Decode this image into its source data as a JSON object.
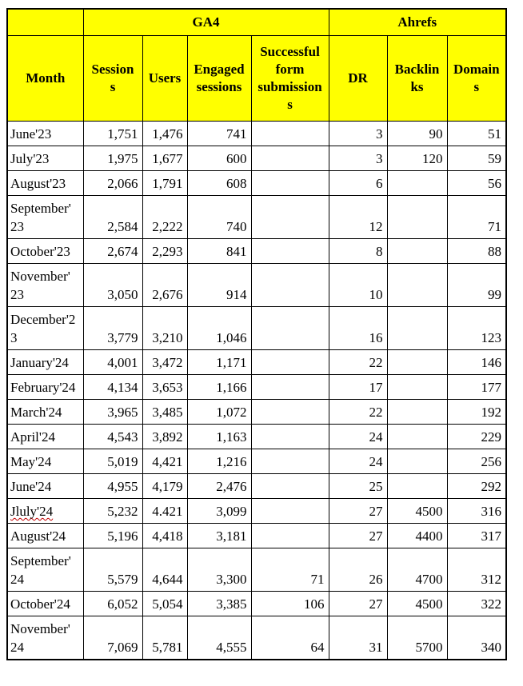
{
  "table": {
    "group_header": {
      "corner": "",
      "ga4": "GA4",
      "ahrefs": "Ahrefs"
    },
    "columns": [
      "Month",
      "Session\ns",
      "Users",
      "Engaged\nsessions",
      "Successful\nform\nsubmission\ns",
      "DR",
      "Backlin\nks",
      "Domain\ns"
    ],
    "rows": [
      {
        "month": "June'23",
        "sessions": "1,751",
        "users": "1,476",
        "engaged": "741",
        "forms": "",
        "dr": "3",
        "backlinks": "90",
        "domains": "51"
      },
      {
        "month": "July'23",
        "sessions": "1,975",
        "users": "1,677",
        "engaged": "600",
        "forms": "",
        "dr": "3",
        "backlinks": "120",
        "domains": "59"
      },
      {
        "month": "August'23",
        "sessions": "2,066",
        "users": "1,791",
        "engaged": "608",
        "forms": "",
        "dr": "6",
        "backlinks": "",
        "domains": "56"
      },
      {
        "month": "September'\n23",
        "sessions": "2,584",
        "users": "2,222",
        "engaged": "740",
        "forms": "",
        "dr": "12",
        "backlinks": "",
        "domains": "71"
      },
      {
        "month": "October'23",
        "sessions": "2,674",
        "users": "2,293",
        "engaged": "841",
        "forms": "",
        "dr": "8",
        "backlinks": "",
        "domains": "88"
      },
      {
        "month": "November'\n23",
        "sessions": "3,050",
        "users": "2,676",
        "engaged": "914",
        "forms": "",
        "dr": "10",
        "backlinks": "",
        "domains": "99"
      },
      {
        "month": "December'2\n3",
        "sessions": "3,779",
        "users": "3,210",
        "engaged": "1,046",
        "forms": "",
        "dr": "16",
        "backlinks": "",
        "domains": "123"
      },
      {
        "month": "January'24",
        "sessions": "4,001",
        "users": "3,472",
        "engaged": "1,171",
        "forms": "",
        "dr": "22",
        "backlinks": "",
        "domains": "146"
      },
      {
        "month": "February'24",
        "sessions": "4,134",
        "users": "3,653",
        "engaged": "1,166",
        "forms": "",
        "dr": "17",
        "backlinks": "",
        "domains": "177"
      },
      {
        "month": "March'24",
        "sessions": "3,965",
        "users": "3,485",
        "engaged": "1,072",
        "forms": "",
        "dr": "22",
        "backlinks": "",
        "domains": "192"
      },
      {
        "month": "April'24",
        "sessions": "4,543",
        "users": "3,892",
        "engaged": "1,163",
        "forms": "",
        "dr": "24",
        "backlinks": "",
        "domains": "229"
      },
      {
        "month": "May'24",
        "sessions": "5,019",
        "users": "4,421",
        "engaged": "1,216",
        "forms": "",
        "dr": "24",
        "backlinks": "",
        "domains": "256"
      },
      {
        "month": "June'24",
        "sessions": "4,955",
        "users": "4,179",
        "engaged": "2,476",
        "forms": "",
        "dr": "25",
        "backlinks": "",
        "domains": "292"
      },
      {
        "month": "Jluly'24",
        "misspelled": true,
        "sessions": "5,232",
        "users": "4.421",
        "engaged": "3,099",
        "forms": "",
        "dr": "27",
        "backlinks": "4500",
        "domains": "316"
      },
      {
        "month": "August'24",
        "sessions": "5,196",
        "users": "4,418",
        "engaged": "3,181",
        "forms": "",
        "dr": "27",
        "backlinks": "4400",
        "domains": "317"
      },
      {
        "month": "September'\n24",
        "sessions": "5,579",
        "users": "4,644",
        "engaged": "3,300",
        "forms": "71",
        "dr": "26",
        "backlinks": "4700",
        "domains": "312"
      },
      {
        "month": "October'24",
        "sessions": "6,052",
        "users": "5,054",
        "engaged": "3,385",
        "forms": "106",
        "dr": "27",
        "backlinks": "4500",
        "domains": "322"
      },
      {
        "month": "November'\n24",
        "highlight": true,
        "sessions": "7,069",
        "users": "5,781",
        "engaged": "4,555",
        "forms": "64",
        "dr": "31",
        "backlinks": "5700",
        "domains": "340"
      }
    ],
    "colors": {
      "header_bg": "#ffff00",
      "highlight_row_bg": "#dbe8d3",
      "border": "#000000",
      "text": "#000000",
      "spellcheck_underline": "#c00000"
    }
  }
}
